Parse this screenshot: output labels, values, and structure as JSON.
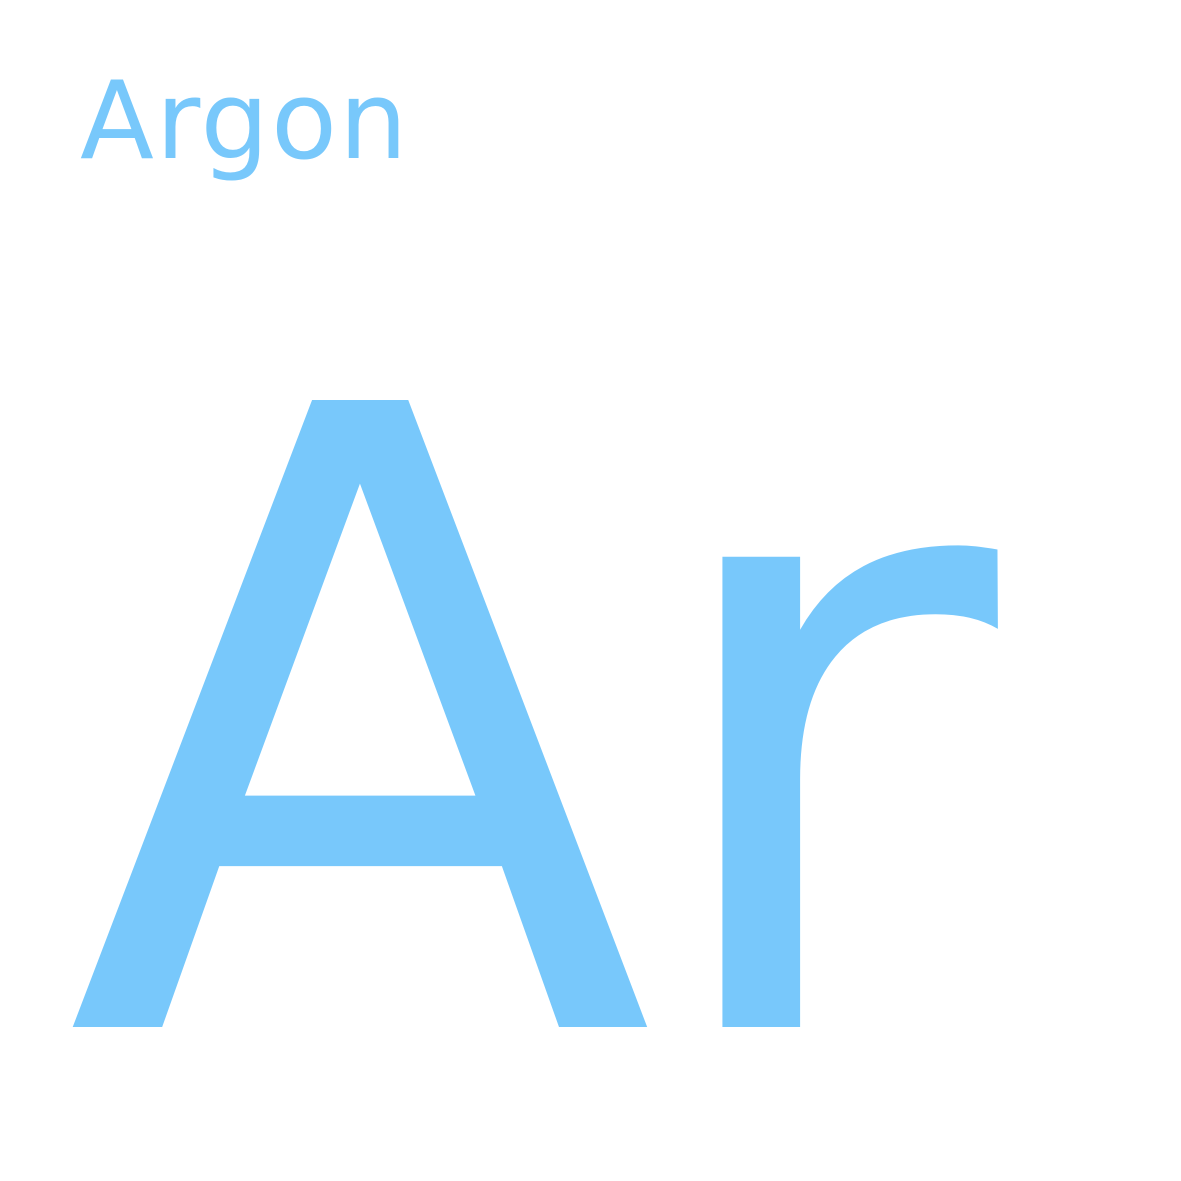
{
  "element": {
    "name": "Argon",
    "symbol": "Ar"
  },
  "colors": {
    "accent": "#78c8fb",
    "background": "#ffffff"
  }
}
